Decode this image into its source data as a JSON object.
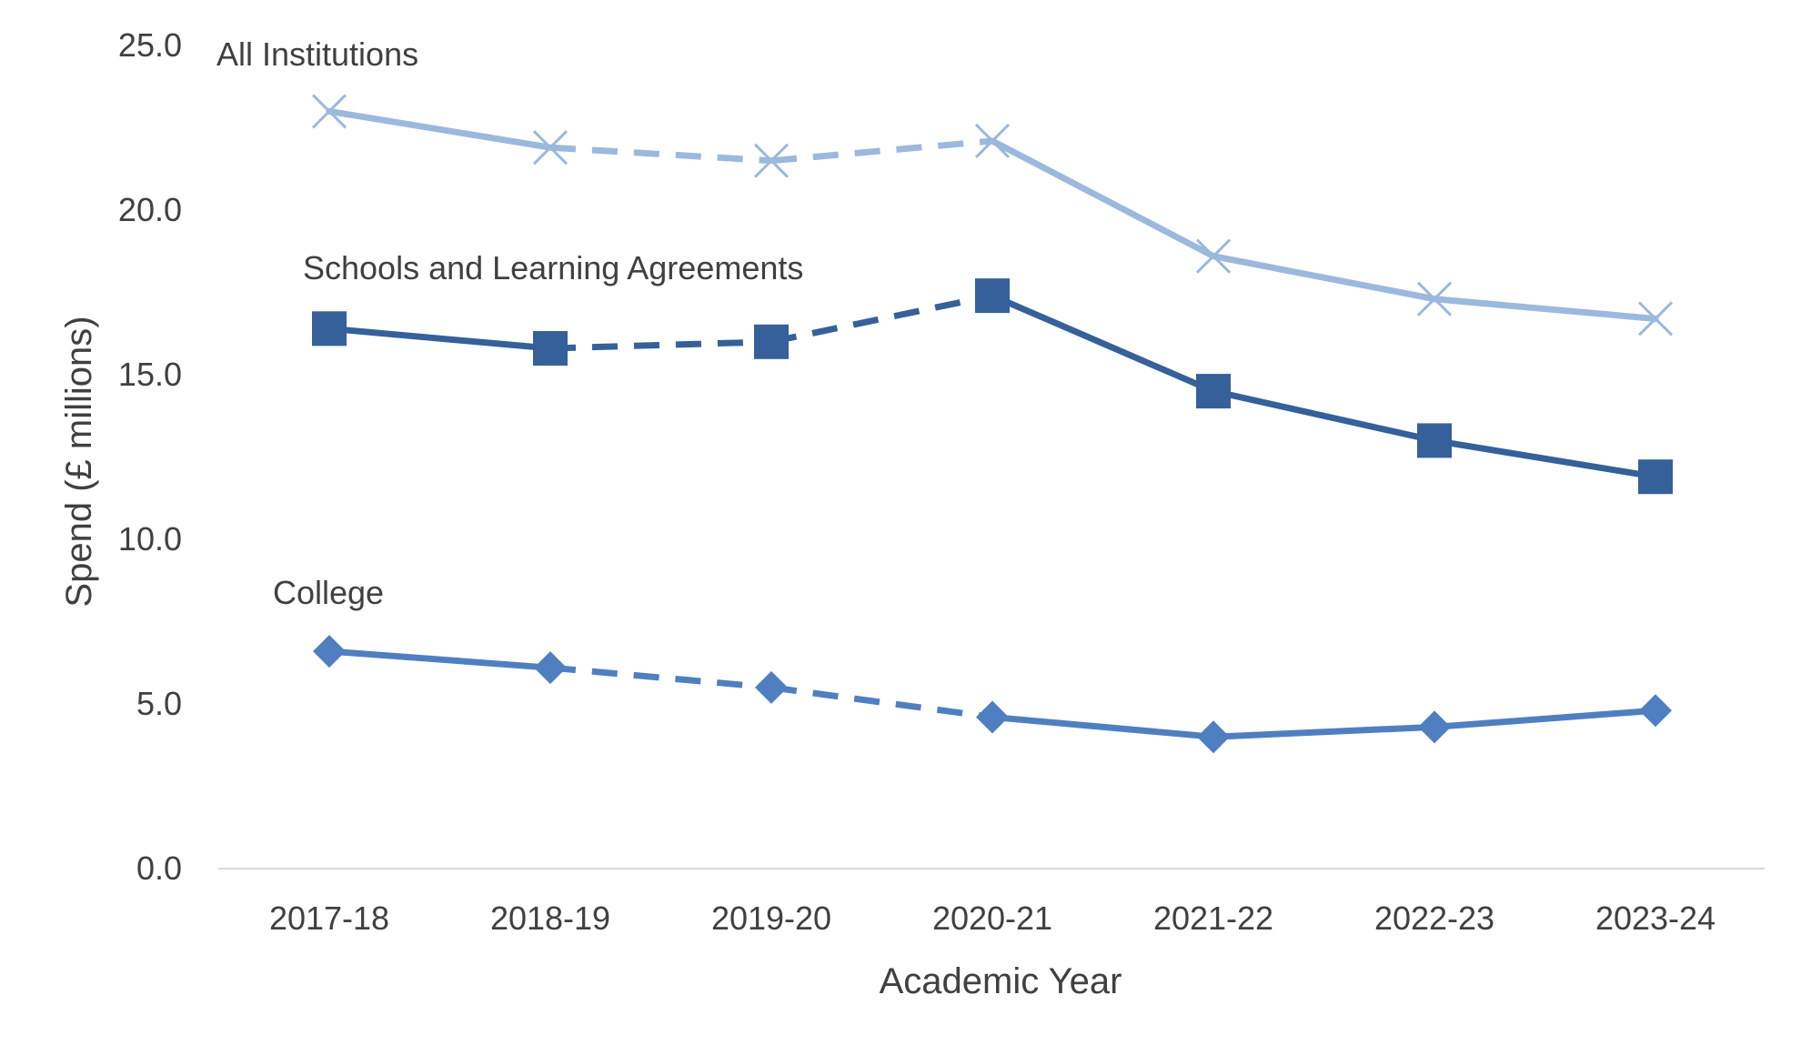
{
  "chart_data": {
    "type": "line",
    "xlabel": "Academic Year",
    "ylabel": "Spend (£ millions)",
    "categories": [
      "2017-18",
      "2018-19",
      "2019-20",
      "2020-21",
      "2021-22",
      "2022-23",
      "2023-24"
    ],
    "ylim": [
      0,
      25
    ],
    "yticks": [
      "0.0",
      "5.0",
      "10.0",
      "15.0",
      "20.0",
      "25.0"
    ],
    "grid": false,
    "legend": "none (series labelled inline)",
    "dashed_segments_between_categories": [
      "2018-19",
      "2020-21"
    ],
    "series": [
      {
        "name": "All Institutions",
        "values": [
          23.0,
          21.9,
          21.5,
          22.1,
          18.6,
          17.3,
          16.7
        ],
        "color": "#9bb8dd",
        "marker": "x"
      },
      {
        "name": "Schools and Learning Agreements",
        "values": [
          16.4,
          15.8,
          16.0,
          17.4,
          14.5,
          13.0,
          11.9
        ],
        "color": "#35609a",
        "marker": "square"
      },
      {
        "name": "College",
        "values": [
          6.6,
          6.1,
          5.5,
          4.6,
          4.0,
          4.3,
          4.8
        ],
        "color": "#4f7fc0",
        "marker": "diamond"
      }
    ]
  }
}
